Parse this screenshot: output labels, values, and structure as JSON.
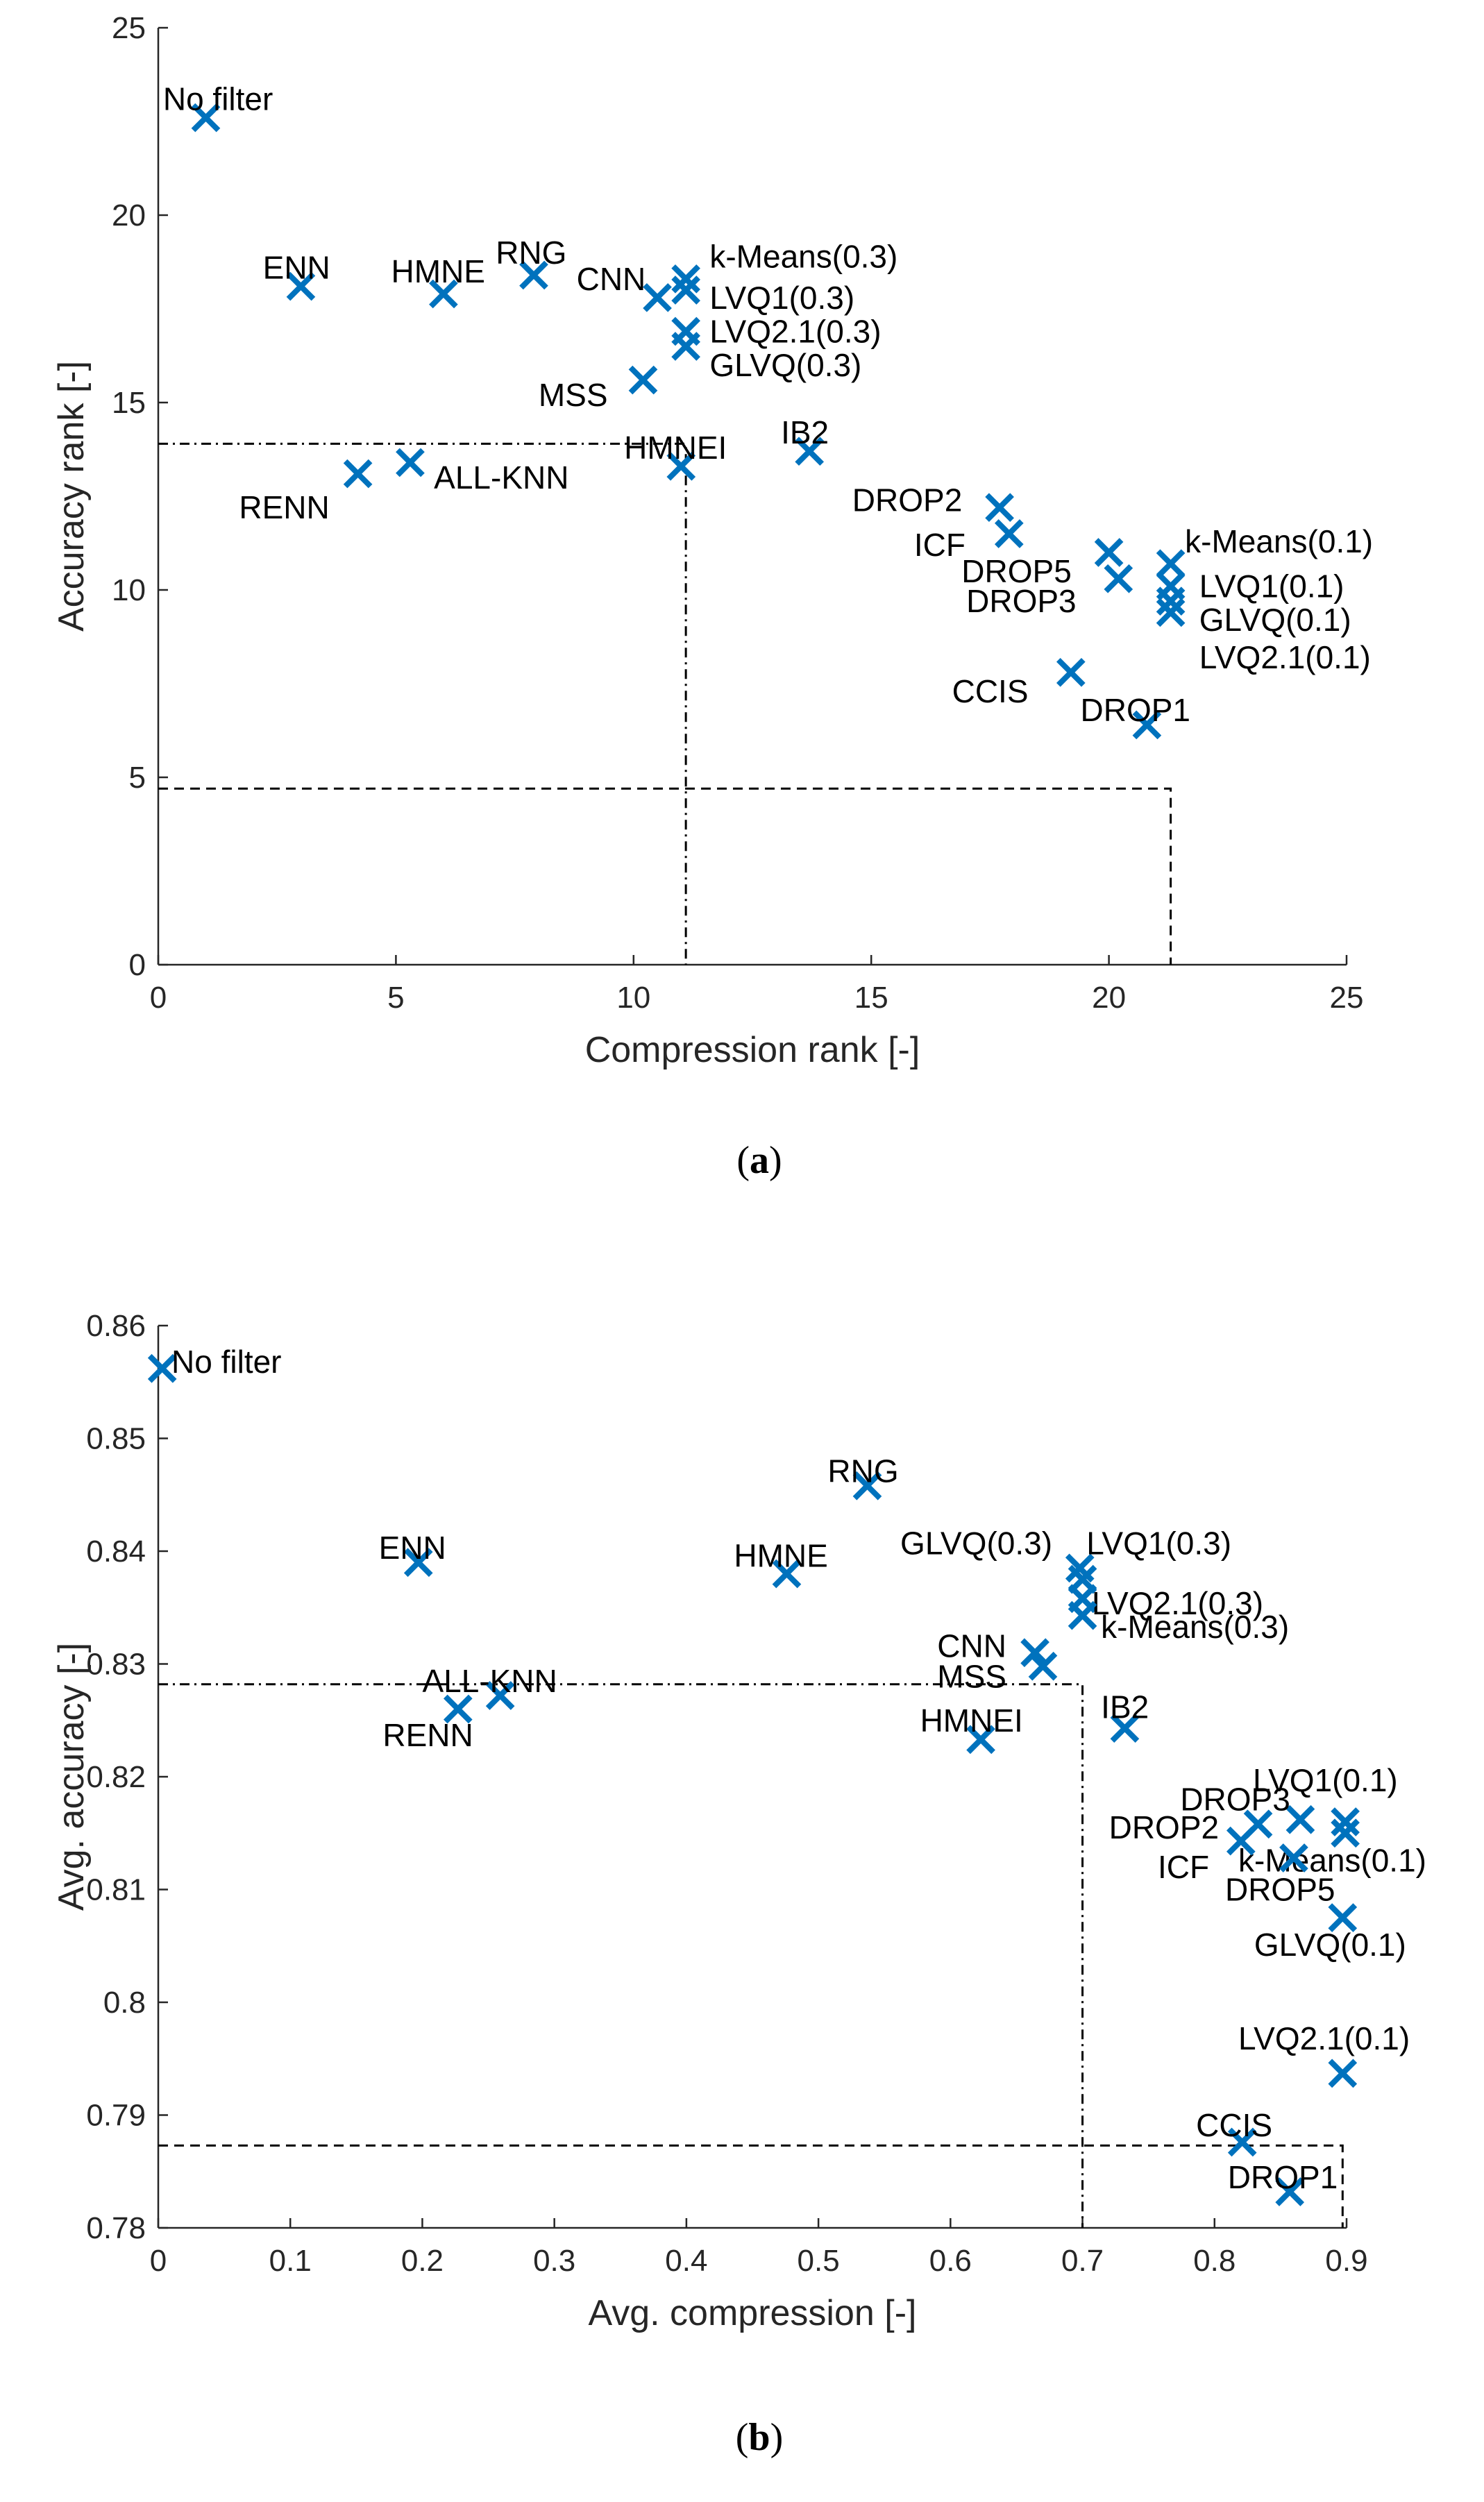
{
  "marker_color": "#0072BD",
  "axis_color": "#262626",
  "chart_data": [
    {
      "id": "a",
      "type": "scatter",
      "caption_open": "(",
      "caption_letter": "a",
      "caption_close": ")",
      "xlabel": "Compression rank [-]",
      "ylabel": "Accuracy rank [-]",
      "xlim": [
        0,
        25
      ],
      "ylim": [
        0,
        25
      ],
      "xticks": [
        0,
        5,
        10,
        15,
        20,
        25
      ],
      "yticks": [
        0,
        5,
        10,
        15,
        20,
        25
      ],
      "xtick_labels": [
        "0",
        "5",
        "10",
        "15",
        "20",
        "25"
      ],
      "ytick_labels": [
        "0",
        "5",
        "10",
        "15",
        "20",
        "25"
      ],
      "points": [
        {
          "label": "No filter",
          "x": 1.0,
          "y": 22.6,
          "lx": 0.1,
          "ly": 23.1,
          "anchor": "start"
        },
        {
          "label": "ENN",
          "x": 3.0,
          "y": 18.1,
          "lx": 2.2,
          "ly": 18.6,
          "anchor": "start"
        },
        {
          "label": "HMNE",
          "x": 6.0,
          "y": 17.9,
          "lx": 4.9,
          "ly": 18.5,
          "anchor": "start"
        },
        {
          "label": "RNG",
          "x": 7.9,
          "y": 18.4,
          "lx": 7.1,
          "ly": 19.0,
          "anchor": "start"
        },
        {
          "label": "CNN",
          "x": 10.5,
          "y": 17.8,
          "lx": 8.8,
          "ly": 18.3,
          "anchor": "start"
        },
        {
          "label": "k-Means(0.3)",
          "x": 11.1,
          "y": 18.3,
          "lx": 11.6,
          "ly": 18.9,
          "anchor": "start"
        },
        {
          "label": "LVQ1(0.3)",
          "x": 11.1,
          "y": 18.0,
          "lx": 11.6,
          "ly": 17.8,
          "anchor": "start"
        },
        {
          "label": "LVQ2.1(0.3)",
          "x": 11.1,
          "y": 16.9,
          "lx": 11.6,
          "ly": 16.9,
          "anchor": "start"
        },
        {
          "label": "GLVQ(0.3)",
          "x": 11.1,
          "y": 16.5,
          "lx": 11.6,
          "ly": 16.0,
          "anchor": "start"
        },
        {
          "label": "MSS",
          "x": 10.2,
          "y": 15.6,
          "lx": 8.0,
          "ly": 15.2,
          "anchor": "start"
        },
        {
          "label": "HMNEI",
          "x": 11.0,
          "y": 13.3,
          "lx": 9.8,
          "ly": 13.8,
          "anchor": "start"
        },
        {
          "label": "IB2",
          "x": 13.7,
          "y": 13.7,
          "lx": 13.1,
          "ly": 14.2,
          "anchor": "start"
        },
        {
          "label": "ALL-KNN",
          "x": 5.3,
          "y": 13.4,
          "lx": 5.8,
          "ly": 13.0,
          "anchor": "start"
        },
        {
          "label": "RENN",
          "x": 4.2,
          "y": 13.1,
          "lx": 1.7,
          "ly": 12.2,
          "anchor": "start"
        },
        {
          "label": "DROP2",
          "x": 17.7,
          "y": 12.2,
          "lx": 14.6,
          "ly": 12.4,
          "anchor": "start"
        },
        {
          "label": "ICF",
          "x": 17.9,
          "y": 11.5,
          "lx": 15.9,
          "ly": 11.2,
          "anchor": "start"
        },
        {
          "label": "DROP5",
          "x": 20.0,
          "y": 11.0,
          "lx": 16.9,
          "ly": 10.5,
          "anchor": "start"
        },
        {
          "label": "DROP3",
          "x": 20.2,
          "y": 10.3,
          "lx": 17.0,
          "ly": 9.7,
          "anchor": "start"
        },
        {
          "label": "k-Means(0.1)",
          "x": 21.3,
          "y": 10.7,
          "lx": 21.6,
          "ly": 11.3,
          "anchor": "start"
        },
        {
          "label": "LVQ1(0.1)",
          "x": 21.3,
          "y": 10.1,
          "lx": 21.9,
          "ly": 10.1,
          "anchor": "start"
        },
        {
          "label": "GLVQ(0.1)",
          "x": 21.3,
          "y": 9.7,
          "lx": 21.9,
          "ly": 9.2,
          "anchor": "start"
        },
        {
          "label": "LVQ2.1(0.1)",
          "x": 21.3,
          "y": 9.4,
          "lx": 21.9,
          "ly": 8.2,
          "anchor": "start"
        },
        {
          "label": "CCIS",
          "x": 19.2,
          "y": 7.8,
          "lx": 16.7,
          "ly": 7.3,
          "anchor": "start"
        },
        {
          "label": "DROP1",
          "x": 20.8,
          "y": 6.4,
          "lx": 19.4,
          "ly": 6.8,
          "anchor": "start"
        }
      ],
      "dashdot_box": {
        "x": 11.1,
        "y": 13.9
      },
      "dashed_box": {
        "x": 21.3,
        "y": 4.7
      }
    },
    {
      "id": "b",
      "type": "scatter",
      "caption_open": "(",
      "caption_letter": "b",
      "caption_close": ")",
      "xlabel": "Avg. compression [-]",
      "ylabel": "Avg. accuracy [-]",
      "xlim": [
        0,
        0.9
      ],
      "ylim": [
        0.78,
        0.86
      ],
      "xticks": [
        0,
        0.1,
        0.2,
        0.3,
        0.4,
        0.5,
        0.6,
        0.7,
        0.8,
        0.9
      ],
      "yticks": [
        0.78,
        0.79,
        0.8,
        0.81,
        0.82,
        0.83,
        0.84,
        0.85,
        0.86
      ],
      "xtick_labels": [
        "0",
        "0.1",
        "0.2",
        "0.3",
        "0.4",
        "0.5",
        "0.6",
        "0.7",
        "0.8",
        "0.9"
      ],
      "ytick_labels": [
        "0.78",
        "0.79",
        "0.8",
        "0.81",
        "0.82",
        "0.83",
        "0.84",
        "0.85",
        "0.86"
      ],
      "points": [
        {
          "label": "No filter",
          "x": 0.003,
          "y": 0.8562,
          "lx": 0.01,
          "ly": 0.8568,
          "anchor": "start"
        },
        {
          "label": "RNG",
          "x": 0.537,
          "y": 0.8458,
          "lx": 0.507,
          "ly": 0.8471,
          "anchor": "start"
        },
        {
          "label": "ENN",
          "x": 0.197,
          "y": 0.839,
          "lx": 0.167,
          "ly": 0.8403,
          "anchor": "start"
        },
        {
          "label": "HMNE",
          "x": 0.476,
          "y": 0.838,
          "lx": 0.436,
          "ly": 0.8396,
          "anchor": "start"
        },
        {
          "label": "GLVQ(0.3)",
          "x": 0.698,
          "y": 0.8385,
          "lx": 0.562,
          "ly": 0.8407,
          "anchor": "start"
        },
        {
          "label": "LVQ1(0.3)",
          "x": 0.7,
          "y": 0.8375,
          "lx": 0.703,
          "ly": 0.8407,
          "anchor": "start"
        },
        {
          "label": "LVQ2.1(0.3)",
          "x": 0.7,
          "y": 0.8358,
          "lx": 0.707,
          "ly": 0.8354,
          "anchor": "start"
        },
        {
          "label": "k-Means(0.3)",
          "x": 0.7,
          "y": 0.8343,
          "lx": 0.714,
          "ly": 0.8333,
          "anchor": "start"
        },
        {
          "label": "CNN",
          "x": 0.664,
          "y": 0.831,
          "lx": 0.59,
          "ly": 0.8316,
          "anchor": "start"
        },
        {
          "label": "MSS",
          "x": 0.67,
          "y": 0.8298,
          "lx": 0.59,
          "ly": 0.8289,
          "anchor": "start"
        },
        {
          "label": "ALL-KNN",
          "x": 0.259,
          "y": 0.8272,
          "lx": 0.2,
          "ly": 0.8285,
          "anchor": "start"
        },
        {
          "label": "RENN",
          "x": 0.227,
          "y": 0.826,
          "lx": 0.17,
          "ly": 0.8237,
          "anchor": "start"
        },
        {
          "label": "HMNEI",
          "x": 0.623,
          "y": 0.8233,
          "lx": 0.577,
          "ly": 0.825,
          "anchor": "start"
        },
        {
          "label": "IB2",
          "x": 0.732,
          "y": 0.8243,
          "lx": 0.714,
          "ly": 0.8262,
          "anchor": "start"
        },
        {
          "label": "LVQ1(0.1)",
          "x": 0.899,
          "y": 0.816,
          "lx": 0.829,
          "ly": 0.8197,
          "anchor": "start"
        },
        {
          "label": "DROP3",
          "x": 0.865,
          "y": 0.8162,
          "lx": 0.774,
          "ly": 0.818,
          "anchor": "start"
        },
        {
          "label": "DROP2",
          "x": 0.833,
          "y": 0.8158,
          "lx": 0.72,
          "ly": 0.8155,
          "anchor": "start"
        },
        {
          "label": "k-Means(0.1)",
          "x": 0.899,
          "y": 0.815,
          "lx": 0.818,
          "ly": 0.8126,
          "anchor": "start"
        },
        {
          "label": "ICF",
          "x": 0.82,
          "y": 0.8143,
          "lx": 0.757,
          "ly": 0.812,
          "anchor": "start"
        },
        {
          "label": "DROP5",
          "x": 0.86,
          "y": 0.8128,
          "lx": 0.808,
          "ly": 0.81,
          "anchor": "start"
        },
        {
          "label": "GLVQ(0.1)",
          "x": 0.897,
          "y": 0.8075,
          "lx": 0.83,
          "ly": 0.8051,
          "anchor": "start"
        },
        {
          "label": "LVQ2.1(0.1)",
          "x": 0.897,
          "y": 0.7937,
          "lx": 0.818,
          "ly": 0.7968,
          "anchor": "start"
        },
        {
          "label": "CCIS",
          "x": 0.821,
          "y": 0.7876,
          "lx": 0.786,
          "ly": 0.7891,
          "anchor": "start"
        },
        {
          "label": "DROP1",
          "x": 0.857,
          "y": 0.7832,
          "lx": 0.81,
          "ly": 0.7845,
          "anchor": "start"
        }
      ],
      "dashdot_box": {
        "x": 0.7,
        "y": 0.8282
      },
      "dashed_box": {
        "x": 0.897,
        "y": 0.7873
      }
    }
  ]
}
